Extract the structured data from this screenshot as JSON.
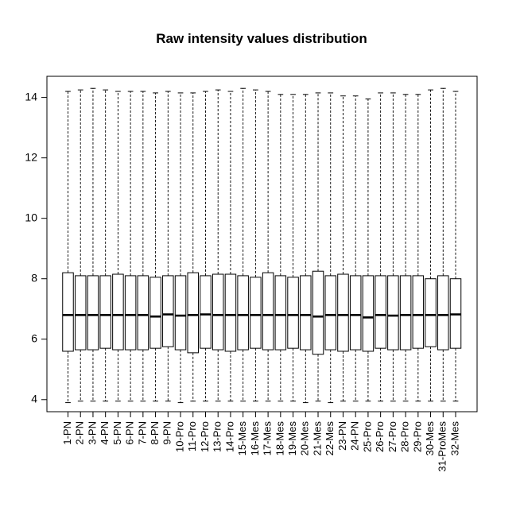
{
  "chart_data": {
    "type": "boxplot",
    "title": "Raw intensity values distribution",
    "xlabel": "",
    "ylabel": "",
    "ylim": [
      3.6,
      14.7
    ],
    "y_ticks": [
      4,
      6,
      8,
      10,
      12,
      14
    ],
    "grid": false,
    "legend": "none",
    "box_color": "#000000",
    "box_fill": "#ffffff",
    "categories": [
      "1-PN",
      "2-PN",
      "3-PN",
      "4-PN",
      "5-PN",
      "6-PN",
      "7-PN",
      "8-PN",
      "9-PN",
      "10-Pro",
      "11-Pro",
      "12-Pro",
      "13-Pro",
      "14-Pro",
      "15-Mes",
      "16-Mes",
      "17-Mes",
      "18-Mes",
      "19-Mes",
      "20-Mes",
      "21-Mes",
      "22-Mes",
      "23-PN",
      "24-PN",
      "25-Pro",
      "26-Pro",
      "27-Pro",
      "28-Pro",
      "29-Pro",
      "30-Mes",
      "31-ProMes",
      "32-Mes"
    ],
    "boxes": [
      {
        "min": 3.9,
        "q1": 5.6,
        "median": 6.8,
        "q3": 8.2,
        "max": 14.2
      },
      {
        "min": 3.95,
        "q1": 5.65,
        "median": 6.8,
        "q3": 8.1,
        "max": 14.25
      },
      {
        "min": 3.95,
        "q1": 5.65,
        "median": 6.8,
        "q3": 8.1,
        "max": 14.3
      },
      {
        "min": 3.95,
        "q1": 5.7,
        "median": 6.8,
        "q3": 8.1,
        "max": 14.25
      },
      {
        "min": 3.95,
        "q1": 5.65,
        "median": 6.8,
        "q3": 8.15,
        "max": 14.2
      },
      {
        "min": 3.95,
        "q1": 5.65,
        "median": 6.8,
        "q3": 8.1,
        "max": 14.2
      },
      {
        "min": 3.95,
        "q1": 5.65,
        "median": 6.8,
        "q3": 8.1,
        "max": 14.2
      },
      {
        "min": 3.95,
        "q1": 5.7,
        "median": 6.75,
        "q3": 8.05,
        "max": 14.15
      },
      {
        "min": 3.95,
        "q1": 5.75,
        "median": 6.82,
        "q3": 8.1,
        "max": 14.2
      },
      {
        "min": 3.9,
        "q1": 5.65,
        "median": 6.78,
        "q3": 8.1,
        "max": 14.15
      },
      {
        "min": 3.95,
        "q1": 5.55,
        "median": 6.8,
        "q3": 8.2,
        "max": 14.15
      },
      {
        "min": 3.95,
        "q1": 5.7,
        "median": 6.82,
        "q3": 8.1,
        "max": 14.2
      },
      {
        "min": 3.95,
        "q1": 5.65,
        "median": 6.8,
        "q3": 8.15,
        "max": 14.25
      },
      {
        "min": 3.95,
        "q1": 5.6,
        "median": 6.8,
        "q3": 8.15,
        "max": 14.2
      },
      {
        "min": 3.95,
        "q1": 5.65,
        "median": 6.8,
        "q3": 8.1,
        "max": 14.3
      },
      {
        "min": 3.95,
        "q1": 5.7,
        "median": 6.8,
        "q3": 8.05,
        "max": 14.25
      },
      {
        "min": 3.95,
        "q1": 5.65,
        "median": 6.8,
        "q3": 8.2,
        "max": 14.2
      },
      {
        "min": 3.95,
        "q1": 5.65,
        "median": 6.8,
        "q3": 8.1,
        "max": 14.1
      },
      {
        "min": 3.95,
        "q1": 5.7,
        "median": 6.8,
        "q3": 8.05,
        "max": 14.1
      },
      {
        "min": 3.9,
        "q1": 5.65,
        "median": 6.8,
        "q3": 8.1,
        "max": 14.1
      },
      {
        "min": 3.95,
        "q1": 5.5,
        "median": 6.75,
        "q3": 8.25,
        "max": 14.15
      },
      {
        "min": 3.9,
        "q1": 5.65,
        "median": 6.8,
        "q3": 8.1,
        "max": 14.15
      },
      {
        "min": 3.95,
        "q1": 5.6,
        "median": 6.8,
        "q3": 8.15,
        "max": 14.05
      },
      {
        "min": 3.95,
        "q1": 5.65,
        "median": 6.8,
        "q3": 8.1,
        "max": 14.05
      },
      {
        "min": 3.95,
        "q1": 5.6,
        "median": 6.72,
        "q3": 8.1,
        "max": 13.95
      },
      {
        "min": 3.95,
        "q1": 5.7,
        "median": 6.8,
        "q3": 8.1,
        "max": 14.15
      },
      {
        "min": 3.95,
        "q1": 5.65,
        "median": 6.78,
        "q3": 8.1,
        "max": 14.15
      },
      {
        "min": 3.95,
        "q1": 5.65,
        "median": 6.8,
        "q3": 8.1,
        "max": 14.1
      },
      {
        "min": 3.95,
        "q1": 5.7,
        "median": 6.8,
        "q3": 8.1,
        "max": 14.1
      },
      {
        "min": 3.95,
        "q1": 5.75,
        "median": 6.8,
        "q3": 8.0,
        "max": 14.25
      },
      {
        "min": 3.95,
        "q1": 5.65,
        "median": 6.8,
        "q3": 8.1,
        "max": 14.3
      },
      {
        "min": 3.95,
        "q1": 5.7,
        "median": 6.82,
        "q3": 8.0,
        "max": 14.2
      }
    ]
  }
}
